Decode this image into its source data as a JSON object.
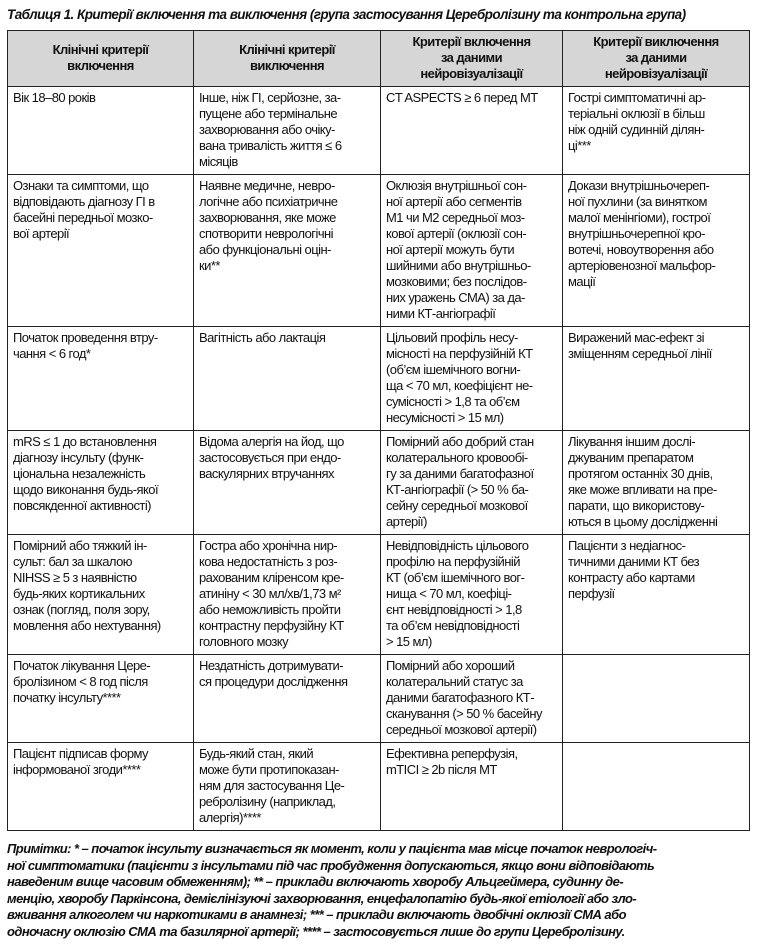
{
  "title": "Таблиця 1. Критерії включення та виключення (група застосування Церебролізину та контрольна група)",
  "headers": [
    "Клінічні критерії\nвключення",
    "Клінічні критерії\nвиключення",
    "Критерії включення\nза даними\nнейровізуалізації",
    "Критерії виключення\nза даними\nнейровізуалізації"
  ],
  "rows": [
    [
      "Вік 18–80 років",
      "Інше, ніж ГІ, серйозне, за-\nпущене або термінальне\nзахворювання або очіку-\nвана тривалість життя ≤ 6\nмісяців",
      "CT ASPECTS ≥ 6 перед МТ",
      "Гострі симптоматичні ар-\nтеріальні оклюзії в більш\nніж одній судинній ділян-\nці***"
    ],
    [
      "Ознаки та симптоми, що\nвідповідають діагнозу ГІ в\nбасейні передньої мозко-\nвої артерії",
      "Наявне медичне, невро-\nлогічне або психіатричне\nзахворювання, яке може\nспотворити неврологічні\nабо функціональні оцін-\nки**",
      "Оклюзія внутрішньої сон-\nної артерії або сегментів\nМ1 чи М2 середньої моз-\nкової артерії (оклюзії сон-\nної артерії можуть бути\nшийними або внутрішньо-\nмозковими; без послідов-\nних уражень СМА) за да-\nними КТ-ангіографії",
      "Докази внутрішньочереп-\nної пухлини (за винятком\nмалої менінгіоми), гострої\nвнутрішньочерепної кро-\nвотечі, новоутворення або\nартеріовенозної мальфор-\nмації"
    ],
    [
      "Початок проведення втру-\nчання < 6 год*",
      "Вагітність або лактація",
      "Цільовий профіль несу-\nмісності на перфузійній КТ\n(об’єм ішемічного вогни-\nща < 70 мл, коефіцієнт не-\nсумісності > 1,8 та об’єм\nнесумісності > 15 мл)",
      "Виражений мас-ефект зі\nзміщенням середньої лінії"
    ],
    [
      "mRS ≤ 1 до встановлення\nдіагнозу інсульту (функ-\nціональна незалежність\nщодо виконання будь-якої\nповсякденної активності)",
      "Відома алергія на йод, що\nзастосовується при ендо-\nваскулярних втручаннях",
      "Помірний або добрий стан\nколатерального кровообі-\nгу за даними багатофазної\nКТ-ангіографії (> 50 % ба-\nсейну середньої мозкової\nартерії)",
      "Лікування іншим дослі-\nджуваним препаратом\nпротягом останніх 30 днів,\nяке може впливати на пре-\nпарати, що використову-\nються в цьому дослідженні"
    ],
    [
      "Помірний або тяжкий ін-\nсульт: бал за шкалою\nNIHSS ≥ 5 з наявністю\nбудь-яких кортикальних\nознак (погляд, поля зору,\nмовлення або нехтування)",
      "Гостра або хронічна нир-\nкова недостатність з роз-\nрахованим кліренсом кре-\nатиніну < 30 мл/хв/1,73 м²\nабо неможливість пройти\nконтрастну перфузійну КТ\nголовного мозку",
      "Невідповідність цільового\nпрофілю на перфузійній\nКТ (об’єм ішемічного вог-\nнища < 70 мл, коефіці-\nєнт невідповідності > 1,8\nта об’єм невідповідності\n> 15 мл)",
      "Пацієнти з недіагнос-\nтичними даними КТ без\nконтрасту або картами\nперфузії"
    ],
    [
      "Початок лікування Цере-\nбролізином < 8 год після\nпочатку інсульту****",
      "Нездатність дотримувати-\nся процедури дослідження",
      "Помірний або хороший\nколатеральний статус за\nданими багатофазного КТ-\nсканування (> 50 % басейну\nсередньої мозкової артерії)",
      ""
    ],
    [
      "Пацієнт підписав форму\nінформованої згоди****",
      "Будь-який стан, який\nможе бути протипоказан-\nням для застосування Це-\nребролізину (наприклад,\nалергія)****",
      "Ефективна реперфузія,\nmTICI ≥ 2b після МТ",
      ""
    ]
  ],
  "notes": "Примітки: * – початок інсульту визначається як момент, коли у пацієнта мав місце початок неврологіч-\nної симптоматики (пацієнти з інсультами під час пробудження допускаються, якщо вони відповідають\nнаведеним вище часовим обмеженням); ** – приклади включають хворобу Альцгеймера, судинну де-\nменцію, хворобу Паркінсона, демієлінізуючі захворювання, енцефалопатію будь-якої етіології або зло-\nвживання алкоголем чи наркотиками в анамнезі; *** – приклади включають двобічні оклюзії СМА або\nодночасну оклюзію СМА та базилярної артерії; **** – застосовується лише до групи Церебролізину.",
  "colors": {
    "header_bg": "#d6d6d6",
    "border": "#222222"
  }
}
